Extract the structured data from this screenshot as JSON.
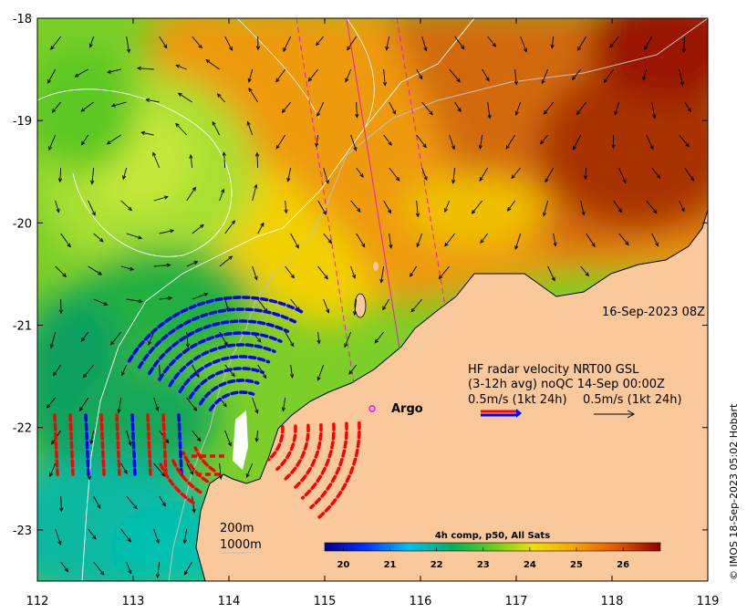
{
  "chart_data": {
    "type": "map",
    "x_ticks": [
      "112",
      "113",
      "114",
      "115",
      "116",
      "117",
      "118",
      "119"
    ],
    "y_ticks": [
      "-18",
      "-19",
      "-20",
      "-21",
      "-22",
      "-23"
    ],
    "xlim": [
      112,
      119
    ],
    "ylim": [
      -23.5,
      -18
    ],
    "timestamp_label": "16-Sep-2023 08Z",
    "radar_legend": {
      "line1": "HF radar velocity  NRT00 GSL",
      "line2": "(3-12h avg) noQC 14-Sep 00:00Z",
      "line3_left": "0.5m/s (1kt 24h)",
      "line3_right": "0.5m/s (1kt 24h)"
    },
    "argo_label": "Argo",
    "isobaths": [
      "200m",
      "1000m"
    ],
    "colorbar": {
      "title": "4h comp, p50, All Sats",
      "ticks": [
        "20",
        "21",
        "22",
        "23",
        "24",
        "25",
        "26"
      ],
      "range": [
        19.6,
        26.8
      ]
    },
    "credit": "© IMOS 18-Sep-2023 05:02 Hobart",
    "colors": {
      "land": "#f9c89b",
      "radar_red": "#ff0000",
      "radar_blue": "#0000ff",
      "track": "#e020c0",
      "argo": "#ff00ff"
    }
  }
}
